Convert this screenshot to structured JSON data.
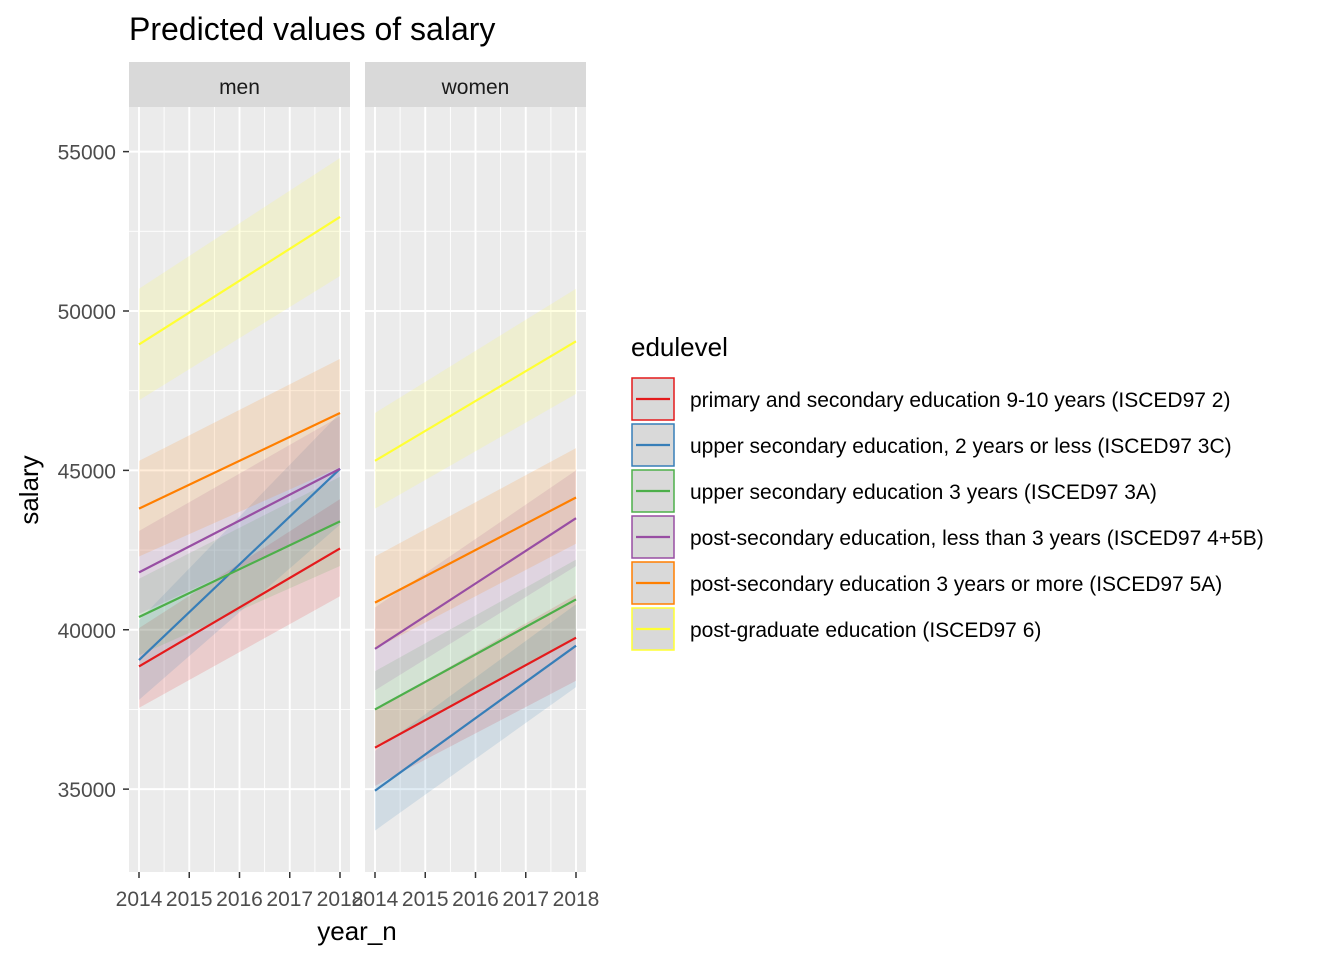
{
  "chart_data": {
    "type": "line",
    "title": "Predicted values of salary",
    "xlabel": "year_n",
    "ylabel": "salary",
    "x": [
      2014,
      2015,
      2016,
      2017,
      2018
    ],
    "x_tick_labels": [
      "2014",
      "2015",
      "2016",
      "2017",
      "2018"
    ],
    "ylim": [
      32400,
      56400
    ],
    "y_ticks": [
      35000,
      40000,
      45000,
      50000,
      55000
    ],
    "y_tick_labels": [
      "35000",
      "40000",
      "45000",
      "50000",
      "55000"
    ],
    "grid": true,
    "legend": {
      "title": "edulevel",
      "placement": "right"
    },
    "facets": [
      {
        "label": "men",
        "series": [
          {
            "name": "primary and secondary education 9-10 years (ISCED97 2)",
            "color": "#E41A1C",
            "y_start": 38850,
            "y_end": 42550,
            "lo_start": 37550,
            "hi_start": 40050,
            "lo_end": 41050,
            "hi_end": 44100
          },
          {
            "name": "upper secondary education, 2 years or less (ISCED97 3C)",
            "color": "#377EB8",
            "y_start": 39050,
            "y_end": 45050,
            "lo_start": 37800,
            "hi_start": 40300,
            "lo_end": 43300,
            "hi_end": 46800
          },
          {
            "name": "upper secondary education 3 years (ISCED97 3A)",
            "color": "#4DAF4A",
            "y_start": 40400,
            "y_end": 43400,
            "lo_start": 39200,
            "hi_start": 41600,
            "lo_end": 42000,
            "hi_end": 44800
          },
          {
            "name": "post-secondary education, less than 3 years (ISCED97 4+5B)",
            "color": "#984EA3",
            "y_start": 41800,
            "y_end": 45050,
            "lo_start": 40500,
            "hi_start": 43100,
            "lo_end": 43400,
            "hi_end": 46700
          },
          {
            "name": "post-secondary education 3 years or more (ISCED97 5A)",
            "color": "#FF7F00",
            "y_start": 43800,
            "y_end": 46800,
            "lo_start": 42300,
            "hi_start": 45300,
            "lo_end": 45100,
            "hi_end": 48500
          },
          {
            "name": "post-graduate education (ISCED97 6)",
            "color": "#FFFF33",
            "y_start": 48950,
            "y_end": 52950,
            "lo_start": 47200,
            "hi_start": 50700,
            "lo_end": 51100,
            "hi_end": 54800
          }
        ]
      },
      {
        "label": "women",
        "series": [
          {
            "name": "primary and secondary education 9-10 years (ISCED97 2)",
            "color": "#E41A1C",
            "y_start": 36300,
            "y_end": 39750,
            "lo_start": 35100,
            "hi_start": 37500,
            "lo_end": 38400,
            "hi_end": 41100
          },
          {
            "name": "upper secondary education, 2 years or less (ISCED97 3C)",
            "color": "#377EB8",
            "y_start": 34950,
            "y_end": 39500,
            "lo_start": 33700,
            "hi_start": 36200,
            "lo_end": 38200,
            "hi_end": 40800
          },
          {
            "name": "upper secondary education 3 years (ISCED97 3A)",
            "color": "#4DAF4A",
            "y_start": 37500,
            "y_end": 40950,
            "lo_start": 36300,
            "hi_start": 38700,
            "lo_end": 39700,
            "hi_end": 42200
          },
          {
            "name": "post-secondary education, less than 3 years (ISCED97 4+5B)",
            "color": "#984EA3",
            "y_start": 39400,
            "y_end": 43500,
            "lo_start": 38100,
            "hi_start": 40700,
            "lo_end": 42000,
            "hi_end": 45000
          },
          {
            "name": "post-secondary education 3 years or more (ISCED97 5A)",
            "color": "#FF7F00",
            "y_start": 40850,
            "y_end": 44150,
            "lo_start": 39400,
            "hi_start": 42300,
            "lo_end": 42700,
            "hi_end": 45700
          },
          {
            "name": "post-graduate education (ISCED97 6)",
            "color": "#FFFF33",
            "y_start": 45300,
            "y_end": 49050,
            "lo_start": 43800,
            "hi_start": 46800,
            "lo_end": 47400,
            "hi_end": 50700
          }
        ]
      }
    ]
  }
}
